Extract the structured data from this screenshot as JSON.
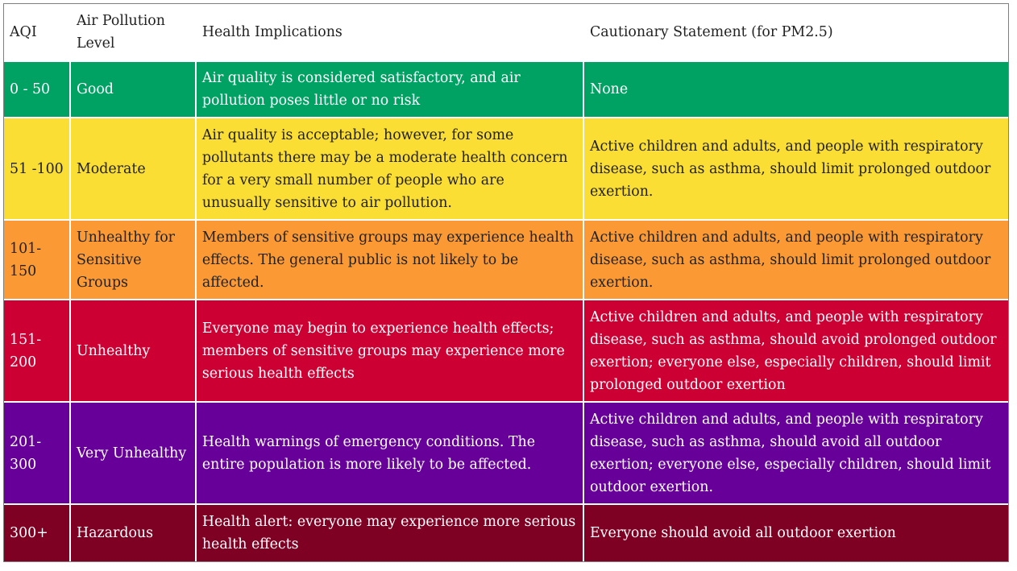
{
  "headers": {
    "aqi": "AQI",
    "level": "Air Pollution Level",
    "health": "Health Implications",
    "caution": "Cautionary Statement (for PM2.5)"
  },
  "rows": [
    {
      "aqi": "0 - 50",
      "level": "Good",
      "health": "Air quality is considered satisfactory, and air pollution poses little or no risk",
      "caution": "None",
      "color": "#00a264"
    },
    {
      "aqi": "51 -100",
      "level": "Moderate",
      "health": "Air quality is acceptable; however, for some pollutants there may be a moderate health concern for a very small number of people who are unusually sensitive to air pollution.",
      "caution": "Active children and adults, and people with respiratory disease, such as asthma, should limit prolonged outdoor exertion.",
      "color": "#fbde33"
    },
    {
      "aqi": "101-150",
      "level": "Unhealthy for Sensitive Groups",
      "health": "Members of sensitive groups may experience health effects. The general public is not likely to be affected.",
      "caution": "Active children and adults, and people with respiratory disease, such as asthma, should limit prolonged outdoor exertion.",
      "color": "#fb9a35"
    },
    {
      "aqi": "151-200",
      "level": "Unhealthy",
      "health": "Everyone may begin to experience health effects; members of sensitive groups may experience more serious health effects",
      "caution": "Active children and adults, and people with respiratory disease, such as asthma, should avoid prolonged outdoor exertion; everyone else, especially children, should limit prolonged outdoor exertion",
      "color": "#cc0033"
    },
    {
      "aqi": "201-300",
      "level": "Very Unhealthy",
      "health": "Health warnings of emergency conditions. The entire population is more likely to be affected.",
      "caution": "Active children and adults, and people with respiratory disease, such as asthma, should avoid all outdoor exertion; everyone else, especially children, should limit outdoor exertion.",
      "color": "#660099"
    },
    {
      "aqi": "300+",
      "level": "Hazardous",
      "health": "Health alert: everyone may experience more serious health effects",
      "caution": "Everyone should avoid all outdoor exertion",
      "color": "#7e0023"
    }
  ]
}
